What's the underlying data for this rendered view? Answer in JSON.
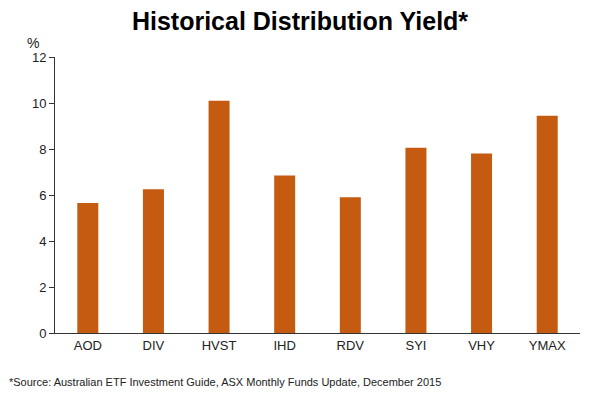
{
  "chart_data": {
    "type": "bar",
    "title": "Historical Distribution Yield*",
    "y_label": "%",
    "footnote": "*Source: Australian ETF Investment Guide, ASX Monthly Funds Update, December 2015",
    "categories": [
      "AOD",
      "DIV",
      "HVST",
      "IHD",
      "RDV",
      "SYI",
      "VHY",
      "YMAX"
    ],
    "values": [
      5.65,
      6.25,
      10.1,
      6.85,
      5.9,
      8.05,
      7.8,
      9.45
    ],
    "color": "#c55a11",
    "ylim": [
      0,
      12
    ],
    "yticks": [
      0,
      2,
      4,
      6,
      8,
      10,
      12
    ],
    "grid": false
  }
}
